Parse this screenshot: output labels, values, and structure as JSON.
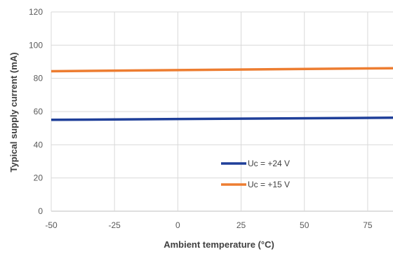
{
  "chart_data": {
    "type": "line",
    "title": "",
    "xlabel": "Ambient temperature (°C)",
    "ylabel": "Typical supply current (mA)",
    "xlim": [
      -50,
      85
    ],
    "ylim": [
      0,
      120
    ],
    "x_ticks": [
      -50,
      -25,
      0,
      25,
      50,
      75
    ],
    "y_ticks": [
      0,
      20,
      40,
      60,
      80,
      100,
      120
    ],
    "grid": true,
    "legend_position": "inside-bottom-center",
    "series": [
      {
        "name": "Uc = +24 V",
        "color": "#1f3f99",
        "x": [
          -50,
          85
        ],
        "y": [
          55,
          56.3
        ]
      },
      {
        "name": "Uc = +15 V",
        "color": "#ed7d31",
        "x": [
          -50,
          85
        ],
        "y": [
          84.3,
          86.1
        ]
      }
    ]
  }
}
